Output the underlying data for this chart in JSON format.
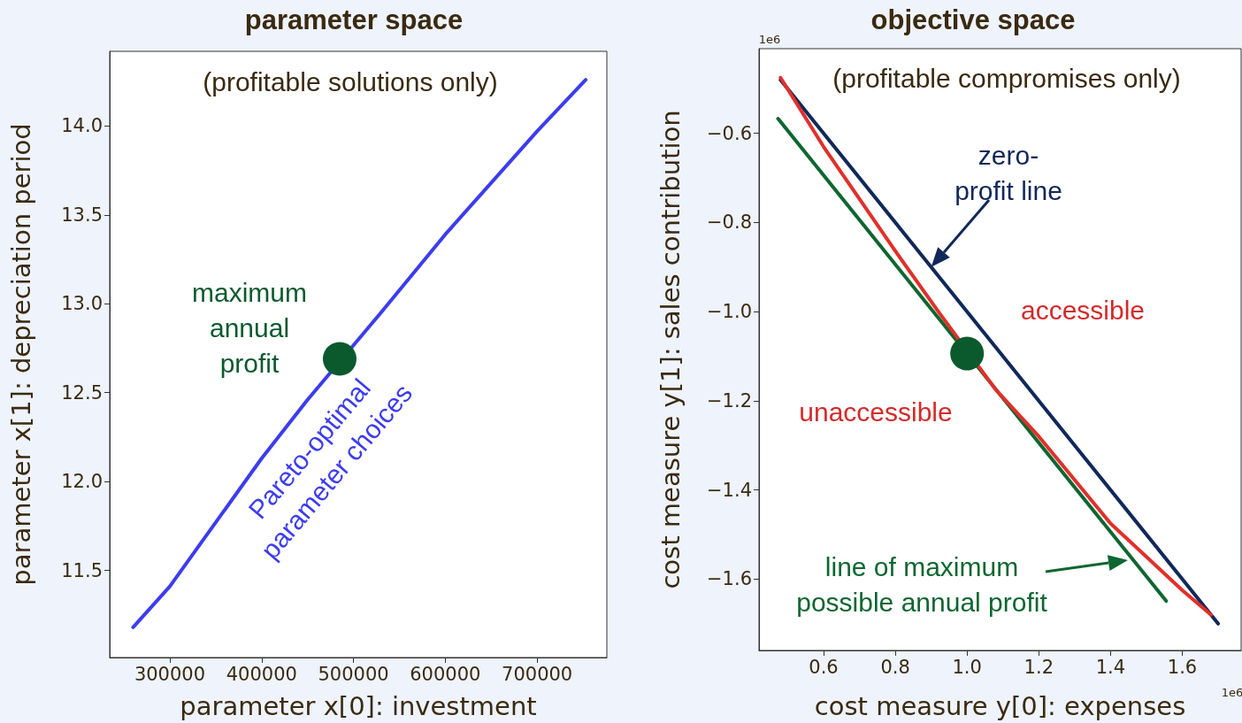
{
  "chart_data": [
    {
      "type": "line",
      "title": "parameter space",
      "xlabel": "parameter x[0]: investment",
      "ylabel": "parameter x[1]: depreciation period",
      "xlim": [
        234500,
        776000
      ],
      "xticks": [
        300000,
        400000,
        500000,
        600000,
        700000
      ],
      "ylim": [
        11.01,
        14.42
      ],
      "yticks": [
        11.5,
        {
          "value": 12,
          "label": "12.0"
        },
        12.5,
        {
          "value": 13,
          "label": "13.0"
        },
        13.5,
        {
          "value": 14,
          "label": "14.0"
        }
      ],
      "grid": false,
      "legend": false,
      "annotations": [
        "(profitable solutions only)"
      ],
      "series": [
        {
          "name": "Pareto-optimal\nparameter choices",
          "marker": "none",
          "color": "#3c3cf0",
          "x": [
            260000,
            300000,
            400000,
            450000,
            530000,
            600000,
            700000,
            753000
          ],
          "values": [
            11.18,
            11.41,
            12.13,
            12.46,
            12.95,
            13.39,
            13.97,
            14.26
          ]
        },
        {
          "name": "maximum\nannual\nprofit",
          "type": "scatter",
          "marker": "circle",
          "color": "#0a5a2e",
          "x": [
            485000
          ],
          "values": [
            12.69
          ]
        }
      ]
    },
    {
      "type": "line",
      "title": "objective space",
      "xlabel": "cost measure y[0]: expenses",
      "ylabel": "cost measure y[1]: sales contribution",
      "xlim": [
        0.42,
        1.764
      ],
      "xticks": [
        0.6,
        0.8,
        {
          "value": 1,
          "label": "1.0"
        },
        1.2,
        1.4,
        1.6
      ],
      "ylim": [
        -1.76,
        -0.41
      ],
      "yticks": [
        {
          "value": -1.6,
          "label": "−1.6"
        },
        {
          "value": -1.4,
          "label": "−1.4"
        },
        {
          "value": -1.2,
          "label": "−1.2"
        },
        {
          "value": -1,
          "label": "−1.0"
        },
        {
          "value": -0.8,
          "label": "−0.8"
        },
        {
          "value": -0.6,
          "label": "−0.6"
        }
      ],
      "grid": false,
      "legend": false,
      "annotations": [
        "(profitable compromises only)",
        "accessible",
        "unaccessible",
        "1e6",
        "1e6",
        {
          "text": "zero-\nprofit line",
          "x": 0.9,
          "y": -0.9
        },
        "line of maximum\npossible annual profit"
      ],
      "series": [
        {
          "marker": "none",
          "color": "#0e6630",
          "x": [
            0.473,
            1.555
          ],
          "values": [
            -0.567,
            -1.649
          ]
        },
        {
          "marker": "none",
          "color": "#10285a",
          "x": [
            0.48,
            1.7
          ],
          "values": [
            -0.48,
            -1.7
          ]
        },
        {
          "marker": "none",
          "color": "#e0302a",
          "x": [
            0.48,
            0.6,
            0.8,
            0.92,
            1.08,
            1.2,
            1.4,
            1.6,
            1.68
          ],
          "values": [
            -0.475,
            -0.63,
            -0.864,
            -1.0,
            -1.175,
            -1.28,
            -1.475,
            -1.625,
            -1.68
          ]
        },
        {
          "type": "scatter",
          "marker": "circle",
          "color": "#0a5a2e",
          "x": [
            1.0
          ],
          "values": [
            -1.094
          ]
        }
      ]
    }
  ]
}
